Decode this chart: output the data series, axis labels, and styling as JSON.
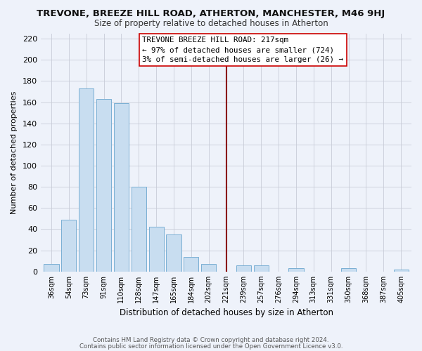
{
  "title": "TREVONE, BREEZE HILL ROAD, ATHERTON, MANCHESTER, M46 9HJ",
  "subtitle": "Size of property relative to detached houses in Atherton",
  "xlabel": "Distribution of detached houses by size in Atherton",
  "ylabel": "Number of detached properties",
  "bins": [
    "36sqm",
    "54sqm",
    "73sqm",
    "91sqm",
    "110sqm",
    "128sqm",
    "147sqm",
    "165sqm",
    "184sqm",
    "202sqm",
    "221sqm",
    "239sqm",
    "257sqm",
    "276sqm",
    "294sqm",
    "313sqm",
    "331sqm",
    "350sqm",
    "368sqm",
    "387sqm",
    "405sqm"
  ],
  "values": [
    7,
    49,
    173,
    163,
    159,
    80,
    42,
    35,
    14,
    7,
    0,
    6,
    6,
    0,
    3,
    0,
    0,
    3,
    0,
    0,
    2
  ],
  "bar_color": "#c8ddf0",
  "bar_edge_color": "#7aafd4",
  "property_line_x": 10.0,
  "property_line_label": "TREVONE BREEZE HILL ROAD: 217sqm",
  "annotation_line1": "← 97% of detached houses are smaller (724)",
  "annotation_line2": "3% of semi-detached houses are larger (26) →",
  "vline_color": "#8b0000",
  "annotation_box_color": "#ffffff",
  "annotation_box_edge": "#cc0000",
  "ylim": [
    0,
    225
  ],
  "yticks": [
    0,
    20,
    40,
    60,
    80,
    100,
    120,
    140,
    160,
    180,
    200,
    220
  ],
  "footer1": "Contains HM Land Registry data © Crown copyright and database right 2024.",
  "footer2": "Contains public sector information licensed under the Open Government Licence v3.0.",
  "bg_color": "#eef2fa",
  "grid_color": "#c8ccd8",
  "title_color": "#111111",
  "subtitle_color": "#333333"
}
